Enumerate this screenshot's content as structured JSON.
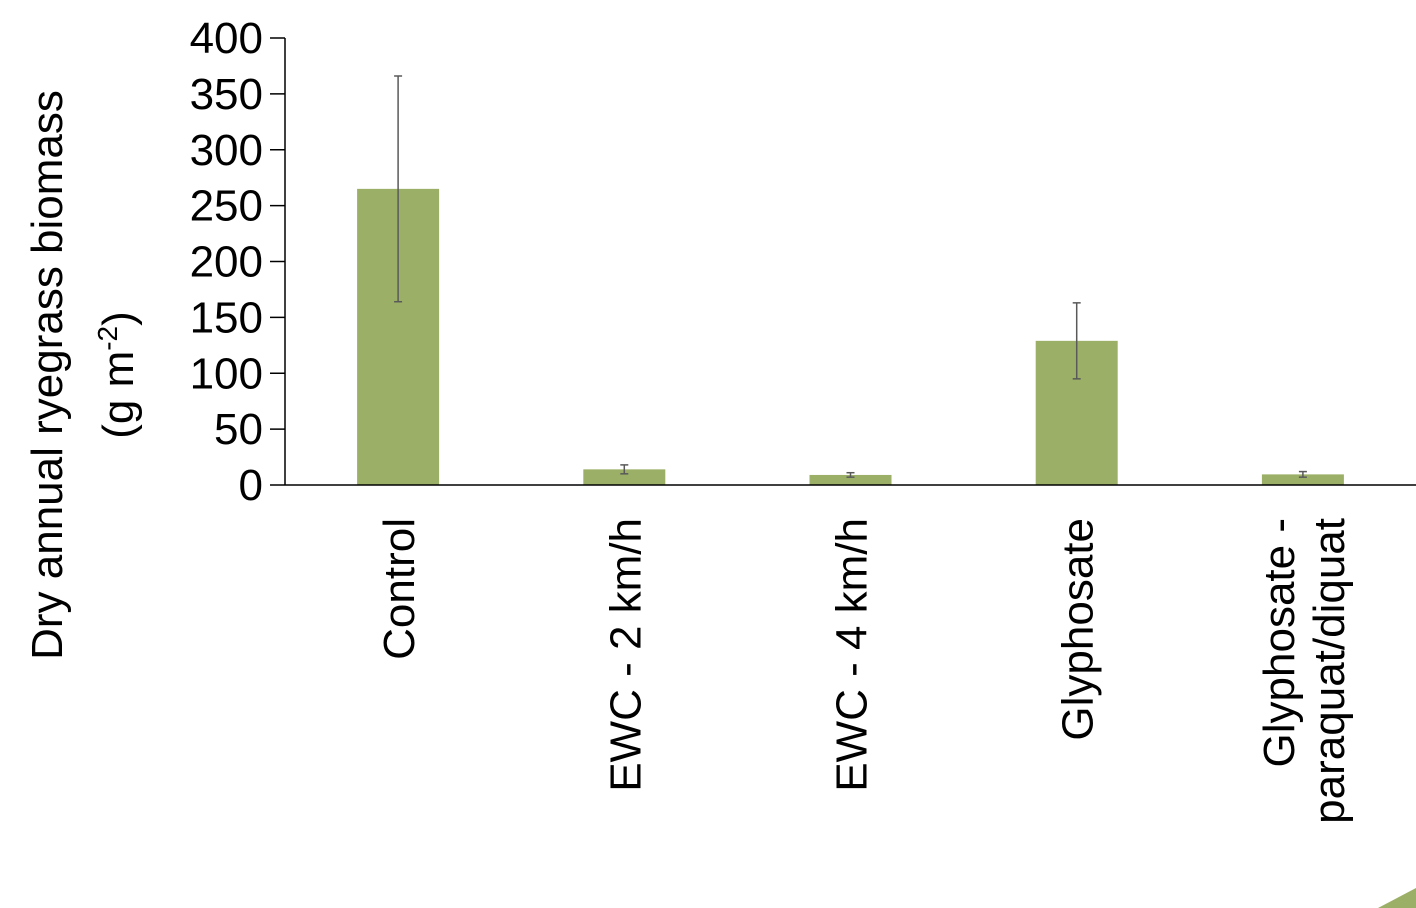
{
  "chart_data": {
    "type": "bar",
    "title": "",
    "ylabel_line1": "Dry annual ryegrass biomass",
    "ylabel_line2_main": "(g m",
    "ylabel_line2_sup": "-2",
    "ylabel_line2_end": ")",
    "xlabel": "",
    "categories": [
      "Control",
      "EWC - 2 km/h",
      "EWC - 4 km/h",
      "Glyphosate",
      "Glyphosate - paraquat/diquat"
    ],
    "category_lines": [
      [
        "Control"
      ],
      [
        "EWC - 2 km/h"
      ],
      [
        "EWC - 4 km/h"
      ],
      [
        "Glyphosate"
      ],
      [
        "Glyphosate -",
        "paraquat/diquat"
      ]
    ],
    "values": [
      265,
      14,
      9,
      129,
      9.5
    ],
    "error": [
      101,
      4,
      2,
      34,
      2.5
    ],
    "ylim": [
      0,
      400
    ],
    "yticks": [
      0,
      50,
      100,
      150,
      200,
      250,
      300,
      350,
      400
    ],
    "grid": false,
    "legend": "none",
    "bar_color": "#9bb066",
    "error_color": "#595959",
    "axis_color": "#000000"
  }
}
